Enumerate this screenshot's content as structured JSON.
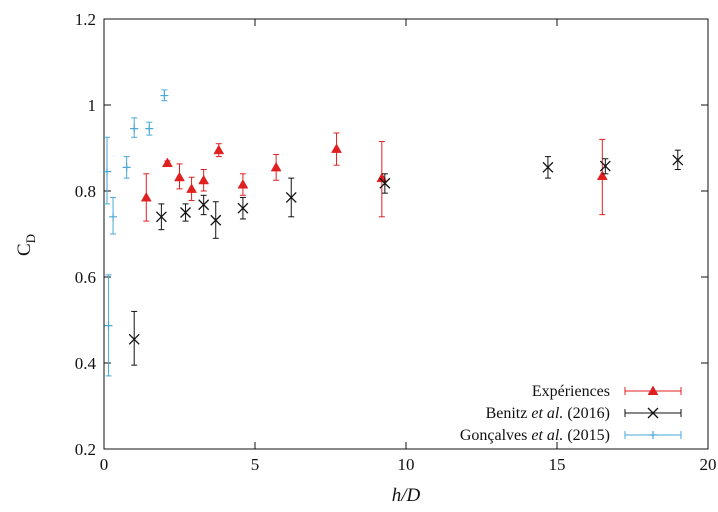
{
  "chart_data": {
    "type": "scatter",
    "title": "",
    "xlabel": "h/D",
    "ylabel": "C_D",
    "xlim": [
      0,
      20
    ],
    "ylim": [
      0.2,
      1.2
    ],
    "x_ticks": [
      0,
      5,
      10,
      15,
      20
    ],
    "y_ticks": [
      0.2,
      0.4,
      0.6,
      0.8,
      1,
      1.2
    ],
    "x_tick_labels": [
      "0",
      "5",
      "10",
      "15",
      "20"
    ],
    "y_tick_labels": [
      "0.2",
      "0.4",
      "0.6",
      "0.8",
      "1",
      "1.2"
    ],
    "grid": false,
    "legend_position": "bottom-right",
    "series": [
      {
        "name": "Expériences",
        "color": "#e02020",
        "marker": "triangle",
        "points": [
          {
            "x": 1.4,
            "y": 0.785,
            "lo": 0.73,
            "hi": 0.84
          },
          {
            "x": 2.1,
            "y": 0.865,
            "lo": 0.86,
            "hi": 0.87
          },
          {
            "x": 2.5,
            "y": 0.832,
            "lo": 0.805,
            "hi": 0.863
          },
          {
            "x": 2.9,
            "y": 0.805,
            "lo": 0.778,
            "hi": 0.832
          },
          {
            "x": 3.3,
            "y": 0.825,
            "lo": 0.8,
            "hi": 0.85
          },
          {
            "x": 3.8,
            "y": 0.895,
            "lo": 0.88,
            "hi": 0.91
          },
          {
            "x": 4.6,
            "y": 0.815,
            "lo": 0.79,
            "hi": 0.84
          },
          {
            "x": 5.7,
            "y": 0.855,
            "lo": 0.825,
            "hi": 0.885
          },
          {
            "x": 7.7,
            "y": 0.898,
            "lo": 0.86,
            "hi": 0.935
          },
          {
            "x": 9.2,
            "y": 0.83,
            "lo": 0.74,
            "hi": 0.915
          },
          {
            "x": 16.5,
            "y": 0.835,
            "lo": 0.745,
            "hi": 0.92
          }
        ]
      },
      {
        "name": "Benitz et al. (2016)",
        "color": "#111111",
        "marker": "cross",
        "points": [
          {
            "x": 1.0,
            "y": 0.455,
            "lo": 0.395,
            "hi": 0.52
          },
          {
            "x": 1.9,
            "y": 0.74,
            "lo": 0.71,
            "hi": 0.77
          },
          {
            "x": 2.7,
            "y": 0.75,
            "lo": 0.73,
            "hi": 0.77
          },
          {
            "x": 3.3,
            "y": 0.768,
            "lo": 0.745,
            "hi": 0.79
          },
          {
            "x": 3.7,
            "y": 0.732,
            "lo": 0.69,
            "hi": 0.775
          },
          {
            "x": 4.6,
            "y": 0.76,
            "lo": 0.735,
            "hi": 0.785
          },
          {
            "x": 6.2,
            "y": 0.785,
            "lo": 0.74,
            "hi": 0.83
          },
          {
            "x": 9.3,
            "y": 0.818,
            "lo": 0.795,
            "hi": 0.84
          },
          {
            "x": 14.7,
            "y": 0.855,
            "lo": 0.83,
            "hi": 0.88
          },
          {
            "x": 16.6,
            "y": 0.858,
            "lo": 0.84,
            "hi": 0.875
          },
          {
            "x": 19.0,
            "y": 0.872,
            "lo": 0.85,
            "hi": 0.895
          }
        ]
      },
      {
        "name": "Gonçalves et al. (2015)",
        "color": "#4aa8d8",
        "marker": "plus",
        "points": [
          {
            "x": 0.1,
            "y": 0.845,
            "lo": 0.77,
            "hi": 0.925
          },
          {
            "x": 0.15,
            "y": 0.487,
            "lo": 0.37,
            "hi": 0.605
          },
          {
            "x": 0.3,
            "y": 0.74,
            "lo": 0.7,
            "hi": 0.785
          },
          {
            "x": 0.75,
            "y": 0.855,
            "lo": 0.83,
            "hi": 0.88
          },
          {
            "x": 1.0,
            "y": 0.945,
            "lo": 0.925,
            "hi": 0.97
          },
          {
            "x": 1.5,
            "y": 0.945,
            "lo": 0.93,
            "hi": 0.96
          },
          {
            "x": 2.0,
            "y": 1.022,
            "lo": 1.01,
            "hi": 1.035
          }
        ]
      }
    ]
  }
}
